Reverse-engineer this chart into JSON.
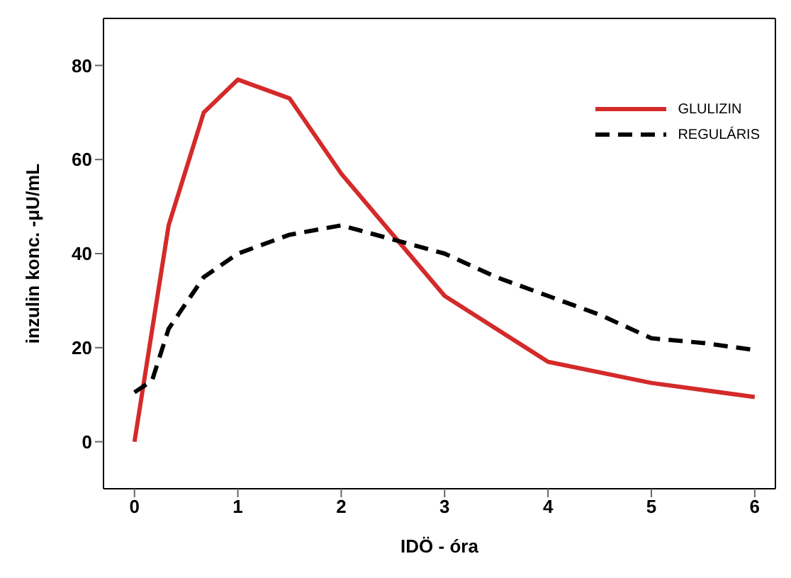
{
  "chart_data": {
    "type": "line",
    "xlabel": "IDÖ - óra",
    "ylabel": "inzulin konc. -μU/mL",
    "xlim": [
      -0.3,
      6.2
    ],
    "xticks": [
      0,
      1,
      2,
      3,
      4,
      5,
      6
    ],
    "ylim": [
      -10,
      90
    ],
    "yticks": [
      0,
      20,
      40,
      60,
      80
    ],
    "grid": false,
    "legend": "top right",
    "marker": "none",
    "series": [
      {
        "name": "GLULIZIN",
        "color": "#d42a2a",
        "line_style": "solid",
        "x": [
          0,
          0.33,
          0.67,
          1,
          1.5,
          2,
          2.5,
          3,
          4,
          5,
          6
        ],
        "values": [
          0,
          46,
          70,
          77,
          73,
          57,
          44,
          31,
          17,
          12.5,
          9.5
        ]
      },
      {
        "name": "REGULÁRIS",
        "color": "#000000",
        "line_style": "dashed",
        "x": [
          0,
          0.17,
          0.33,
          0.67,
          1,
          1.5,
          2,
          2.5,
          3,
          3.5,
          4,
          4.5,
          5,
          5.5,
          6
        ],
        "values": [
          10.5,
          13,
          24,
          35,
          40,
          44,
          46,
          43,
          40,
          35,
          31,
          27,
          22,
          21,
          19.5
        ]
      }
    ]
  }
}
